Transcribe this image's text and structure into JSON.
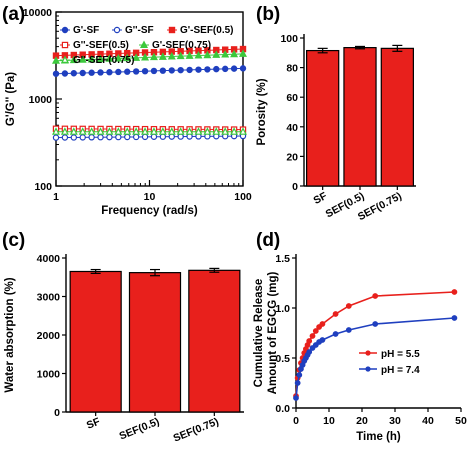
{
  "panels": {
    "a": "(a)",
    "b": "(b)",
    "c": "(c)",
    "d": "(d)"
  },
  "chart_data": [
    {
      "panel": "(a)",
      "type": "line",
      "xlabel": "Frequency (rad/s)",
      "ylabel": "G'/G'' (Pa)",
      "xscale": "log",
      "yscale": "log",
      "xlim": [
        1,
        100
      ],
      "ylim": [
        100,
        10000
      ],
      "x_ticks": [
        "1",
        "10",
        "100"
      ],
      "y_ticks": [
        "100",
        "1000",
        "10000"
      ],
      "legend_position": "top",
      "grid": false,
      "series": [
        {
          "name": "G'-SF",
          "color": "#1f3fbf",
          "marker": "filled-circle",
          "y_start": 1950,
          "y_end": 2250
        },
        {
          "name": "G''-SF",
          "color": "#1f3fbf",
          "marker": "open-circle",
          "y_start": 360,
          "y_end": 375
        },
        {
          "name": "G'-SEF(0.5)",
          "color": "#e8201c",
          "marker": "filled-square",
          "y_start": 3150,
          "y_end": 3750
        },
        {
          "name": "G''-SEF(0.5)",
          "color": "#e8201c",
          "marker": "open-square",
          "y_start": 455,
          "y_end": 445
        },
        {
          "name": "G'-SEF(0.75)",
          "color": "#3cc83c",
          "marker": "filled-triangle",
          "y_start": 2750,
          "y_end": 3300
        },
        {
          "name": "G''-SEF(0.75)",
          "color": "#3cc83c",
          "marker": "open-triangle",
          "y_start": 420,
          "y_end": 420
        }
      ]
    },
    {
      "panel": "(b)",
      "type": "bar",
      "categories": [
        "SF",
        "SEF(0.5)",
        "SEF(0.75)"
      ],
      "values": [
        91.5,
        93.5,
        93
      ],
      "errors": [
        1.5,
        0.8,
        2
      ],
      "ylabel": "Porosity (%)",
      "ylim": [
        0,
        100
      ],
      "y_ticks": [
        "0",
        "20",
        "40",
        "60",
        "80",
        "100"
      ],
      "color": "#e8201c"
    },
    {
      "panel": "(c)",
      "type": "bar",
      "categories": [
        "SF",
        "SEF(0.5)",
        "SEF(0.75)"
      ],
      "values": [
        3650,
        3620,
        3680
      ],
      "errors": [
        50,
        80,
        50
      ],
      "ylabel": "Water absorption (%)",
      "ylim": [
        0,
        4000
      ],
      "y_ticks": [
        "0",
        "1000",
        "2000",
        "3000",
        "4000"
      ],
      "color": "#e8201c"
    },
    {
      "panel": "(d)",
      "type": "line",
      "xlabel": "Time (h)",
      "ylabel_line1": "Cumulative Release",
      "ylabel_line2": "Amount of EGCG (mg)",
      "xlim": [
        0,
        50
      ],
      "ylim": [
        0,
        1.5
      ],
      "x_ticks": [
        "0",
        "10",
        "20",
        "30",
        "40",
        "50"
      ],
      "y_ticks": [
        "0.0",
        "0.5",
        "1.0",
        "1.5"
      ],
      "legend_position": "bottom-right",
      "series": [
        {
          "name": "pH = 5.5",
          "color": "#e8201c",
          "x": [
            0,
            0.5,
            1,
            1.5,
            2,
            2.5,
            3,
            3.5,
            4,
            5,
            6,
            7,
            8,
            12,
            16,
            24,
            48
          ],
          "y": [
            0.12,
            0.3,
            0.38,
            0.45,
            0.5,
            0.55,
            0.59,
            0.63,
            0.67,
            0.72,
            0.77,
            0.81,
            0.84,
            0.94,
            1.02,
            1.12,
            1.16
          ]
        },
        {
          "name": "pH = 7.4",
          "color": "#1f3fbf",
          "x": [
            0,
            0.5,
            1,
            1.5,
            2,
            2.5,
            3,
            3.5,
            4,
            5,
            6,
            7,
            8,
            12,
            16,
            24,
            48
          ],
          "y": [
            0.1,
            0.25,
            0.33,
            0.39,
            0.43,
            0.47,
            0.5,
            0.53,
            0.56,
            0.6,
            0.63,
            0.66,
            0.68,
            0.74,
            0.78,
            0.84,
            0.9
          ]
        }
      ]
    }
  ]
}
